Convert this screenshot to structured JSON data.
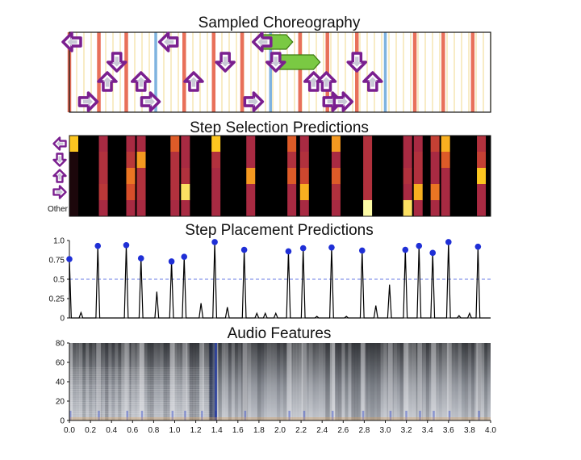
{
  "chart_data": [
    {
      "type": "step-chart",
      "title": "Sampled Choreography",
      "beat_lines": [
        {
          "time": 0.0,
          "kind": "quarter"
        },
        {
          "time": 0.28,
          "kind": "quarter"
        },
        {
          "time": 0.54,
          "kind": "quarter"
        },
        {
          "time": 0.82,
          "kind": "eighth"
        },
        {
          "time": 1.09,
          "kind": "quarter"
        },
        {
          "time": 1.37,
          "kind": "quarter"
        },
        {
          "time": 1.64,
          "kind": "quarter"
        },
        {
          "time": 1.91,
          "kind": "eighth"
        },
        {
          "time": 2.19,
          "kind": "quarter"
        },
        {
          "time": 2.45,
          "kind": "quarter"
        },
        {
          "time": 2.73,
          "kind": "quarter"
        },
        {
          "time": 3.0,
          "kind": "eighth"
        },
        {
          "time": 3.28,
          "kind": "quarter"
        },
        {
          "time": 3.55,
          "kind": "quarter"
        },
        {
          "time": 3.83,
          "kind": "quarter"
        }
      ],
      "steps": [
        {
          "time": 0.0,
          "lane": "left"
        },
        {
          "time": 0.18,
          "lane": "right"
        },
        {
          "time": 0.36,
          "lane": "up"
        },
        {
          "time": 0.45,
          "lane": "down"
        },
        {
          "time": 0.68,
          "lane": "up"
        },
        {
          "time": 0.77,
          "lane": "right"
        },
        {
          "time": 0.94,
          "lane": "left"
        },
        {
          "time": 1.18,
          "lane": "up"
        },
        {
          "time": 1.48,
          "lane": "down"
        },
        {
          "time": 1.75,
          "lane": "right"
        },
        {
          "time": 1.83,
          "lane": "left"
        },
        {
          "time": 1.96,
          "lane": "down"
        },
        {
          "time": 2.32,
          "lane": "up"
        },
        {
          "time": 2.44,
          "lane": "up"
        },
        {
          "time": 2.5,
          "lane": "right"
        },
        {
          "time": 2.6,
          "lane": "right"
        },
        {
          "time": 2.73,
          "lane": "down"
        },
        {
          "time": 2.88,
          "lane": "up"
        }
      ],
      "holds": [
        {
          "start": 1.83,
          "end": 2.12,
          "lane": "left"
        },
        {
          "start": 1.96,
          "end": 2.38,
          "lane": "down"
        }
      ],
      "colors": {
        "quarter": "#e8705a",
        "eighth": "#7fb3e0",
        "sixteenth": "#f2dfa0",
        "hold": "#7ac943",
        "arrow_fill": "#ffffff",
        "arrow_stroke": "#7a1f8f"
      }
    },
    {
      "type": "heatmap",
      "title": "Step Selection Predictions",
      "row_labels": [
        "left",
        "down",
        "up",
        "right",
        "Other"
      ],
      "other_label": "Other",
      "columns": [
        {
          "time": 0.0,
          "values": [
            0.9,
            0.05,
            0.05,
            0.05,
            0.05
          ]
        },
        {
          "time": 0.28,
          "values": [
            0.3,
            0.35,
            0.35,
            0.4,
            0.3
          ]
        },
        {
          "time": 0.54,
          "values": [
            0.3,
            0.4,
            0.7,
            0.55,
            0.3
          ]
        },
        {
          "time": 0.64,
          "values": [
            0.3,
            0.8,
            0.35,
            0.35,
            0.3
          ]
        },
        {
          "time": 0.96,
          "values": [
            0.6,
            0.35,
            0.35,
            0.35,
            0.3
          ]
        },
        {
          "time": 1.06,
          "values": [
            0.3,
            0.3,
            0.35,
            0.95,
            0.3
          ]
        },
        {
          "time": 1.35,
          "values": [
            0.9,
            0.35,
            0.3,
            0.3,
            0.3
          ]
        },
        {
          "time": 1.68,
          "values": [
            0.3,
            0.3,
            0.8,
            0.3,
            0.3
          ]
        },
        {
          "time": 2.07,
          "values": [
            0.6,
            0.35,
            0.6,
            0.3,
            0.3
          ]
        },
        {
          "time": 2.19,
          "values": [
            0.3,
            0.35,
            0.5,
            0.85,
            0.3
          ]
        },
        {
          "time": 2.49,
          "values": [
            0.8,
            0.3,
            0.6,
            0.35,
            0.3
          ]
        },
        {
          "time": 2.79,
          "values": [
            0.35,
            0.35,
            0.35,
            0.35,
            1.0
          ]
        },
        {
          "time": 3.17,
          "values": [
            0.3,
            0.3,
            0.35,
            0.3,
            0.95
          ]
        },
        {
          "time": 3.27,
          "values": [
            0.3,
            0.35,
            0.35,
            0.85,
            0.3
          ]
        },
        {
          "time": 3.43,
          "values": [
            0.45,
            0.3,
            0.3,
            0.7,
            0.3
          ]
        },
        {
          "time": 3.53,
          "values": [
            0.85,
            0.6,
            0.3,
            0.3,
            0.3
          ]
        },
        {
          "time": 3.87,
          "values": [
            0.35,
            0.45,
            0.9,
            0.3,
            0.3
          ]
        }
      ]
    },
    {
      "type": "line",
      "title": "Step Placement Predictions",
      "xlim": [
        0,
        4.0
      ],
      "ylim": [
        0,
        1.0
      ],
      "yticks": [
        "0",
        "0.25",
        "0.5",
        "0.75",
        "1.0"
      ],
      "threshold": 0.5,
      "peaks": [
        {
          "x": 0.0,
          "y": 0.76
        },
        {
          "x": 0.11,
          "y": 0.07
        },
        {
          "x": 0.27,
          "y": 0.93
        },
        {
          "x": 0.54,
          "y": 0.94
        },
        {
          "x": 0.68,
          "y": 0.77
        },
        {
          "x": 0.83,
          "y": 0.34
        },
        {
          "x": 0.97,
          "y": 0.73
        },
        {
          "x": 1.09,
          "y": 0.79
        },
        {
          "x": 1.25,
          "y": 0.19
        },
        {
          "x": 1.38,
          "y": 0.98
        },
        {
          "x": 1.5,
          "y": 0.14
        },
        {
          "x": 1.66,
          "y": 0.88
        },
        {
          "x": 1.78,
          "y": 0.06
        },
        {
          "x": 1.86,
          "y": 0.06
        },
        {
          "x": 1.96,
          "y": 0.06
        },
        {
          "x": 2.08,
          "y": 0.86
        },
        {
          "x": 2.22,
          "y": 0.9
        },
        {
          "x": 2.35,
          "y": 0.02
        },
        {
          "x": 2.49,
          "y": 0.91
        },
        {
          "x": 2.63,
          "y": 0.02
        },
        {
          "x": 2.78,
          "y": 0.87
        },
        {
          "x": 2.91,
          "y": 0.16
        },
        {
          "x": 3.04,
          "y": 0.43
        },
        {
          "x": 3.19,
          "y": 0.88
        },
        {
          "x": 3.32,
          "y": 0.93
        },
        {
          "x": 3.45,
          "y": 0.84
        },
        {
          "x": 3.6,
          "y": 0.98
        },
        {
          "x": 3.7,
          "y": 0.03
        },
        {
          "x": 3.8,
          "y": 0.06
        },
        {
          "x": 3.88,
          "y": 0.92
        }
      ],
      "markers": [
        {
          "x": 0.0,
          "y": 0.76
        },
        {
          "x": 0.27,
          "y": 0.93
        },
        {
          "x": 0.54,
          "y": 0.94
        },
        {
          "x": 0.68,
          "y": 0.77
        },
        {
          "x": 0.97,
          "y": 0.73
        },
        {
          "x": 1.09,
          "y": 0.79
        },
        {
          "x": 1.38,
          "y": 0.98
        },
        {
          "x": 1.66,
          "y": 0.88
        },
        {
          "x": 2.08,
          "y": 0.86
        },
        {
          "x": 2.22,
          "y": 0.9
        },
        {
          "x": 2.49,
          "y": 0.91
        },
        {
          "x": 2.78,
          "y": 0.87
        },
        {
          "x": 3.19,
          "y": 0.88
        },
        {
          "x": 3.32,
          "y": 0.93
        },
        {
          "x": 3.45,
          "y": 0.84
        },
        {
          "x": 3.6,
          "y": 0.98
        },
        {
          "x": 3.88,
          "y": 0.92
        }
      ],
      "colors": {
        "line": "#000000",
        "marker": "#1f2fd6",
        "threshold": "#6a7be6"
      }
    },
    {
      "type": "spectrogram",
      "title": "Audio Features",
      "xlim": [
        0,
        4.0
      ],
      "ylim": [
        0,
        80
      ],
      "yticks": [
        "0",
        "20",
        "40",
        "60",
        "80"
      ],
      "xticks": [
        "0.0",
        "0.2",
        "0.4",
        "0.6",
        "0.8",
        "1.0",
        "1.2",
        "1.4",
        "1.6",
        "1.8",
        "2.0",
        "2.2",
        "2.4",
        "2.6",
        "2.8",
        "3.0",
        "3.2",
        "3.4",
        "3.6",
        "3.8",
        "4.0"
      ],
      "onset_times": [
        0.0,
        0.27,
        0.54,
        0.68,
        0.97,
        1.09,
        1.25,
        1.38,
        1.66,
        2.08,
        2.22,
        2.49,
        2.78,
        3.04,
        3.19,
        3.32,
        3.45,
        3.6,
        3.88
      ]
    }
  ]
}
